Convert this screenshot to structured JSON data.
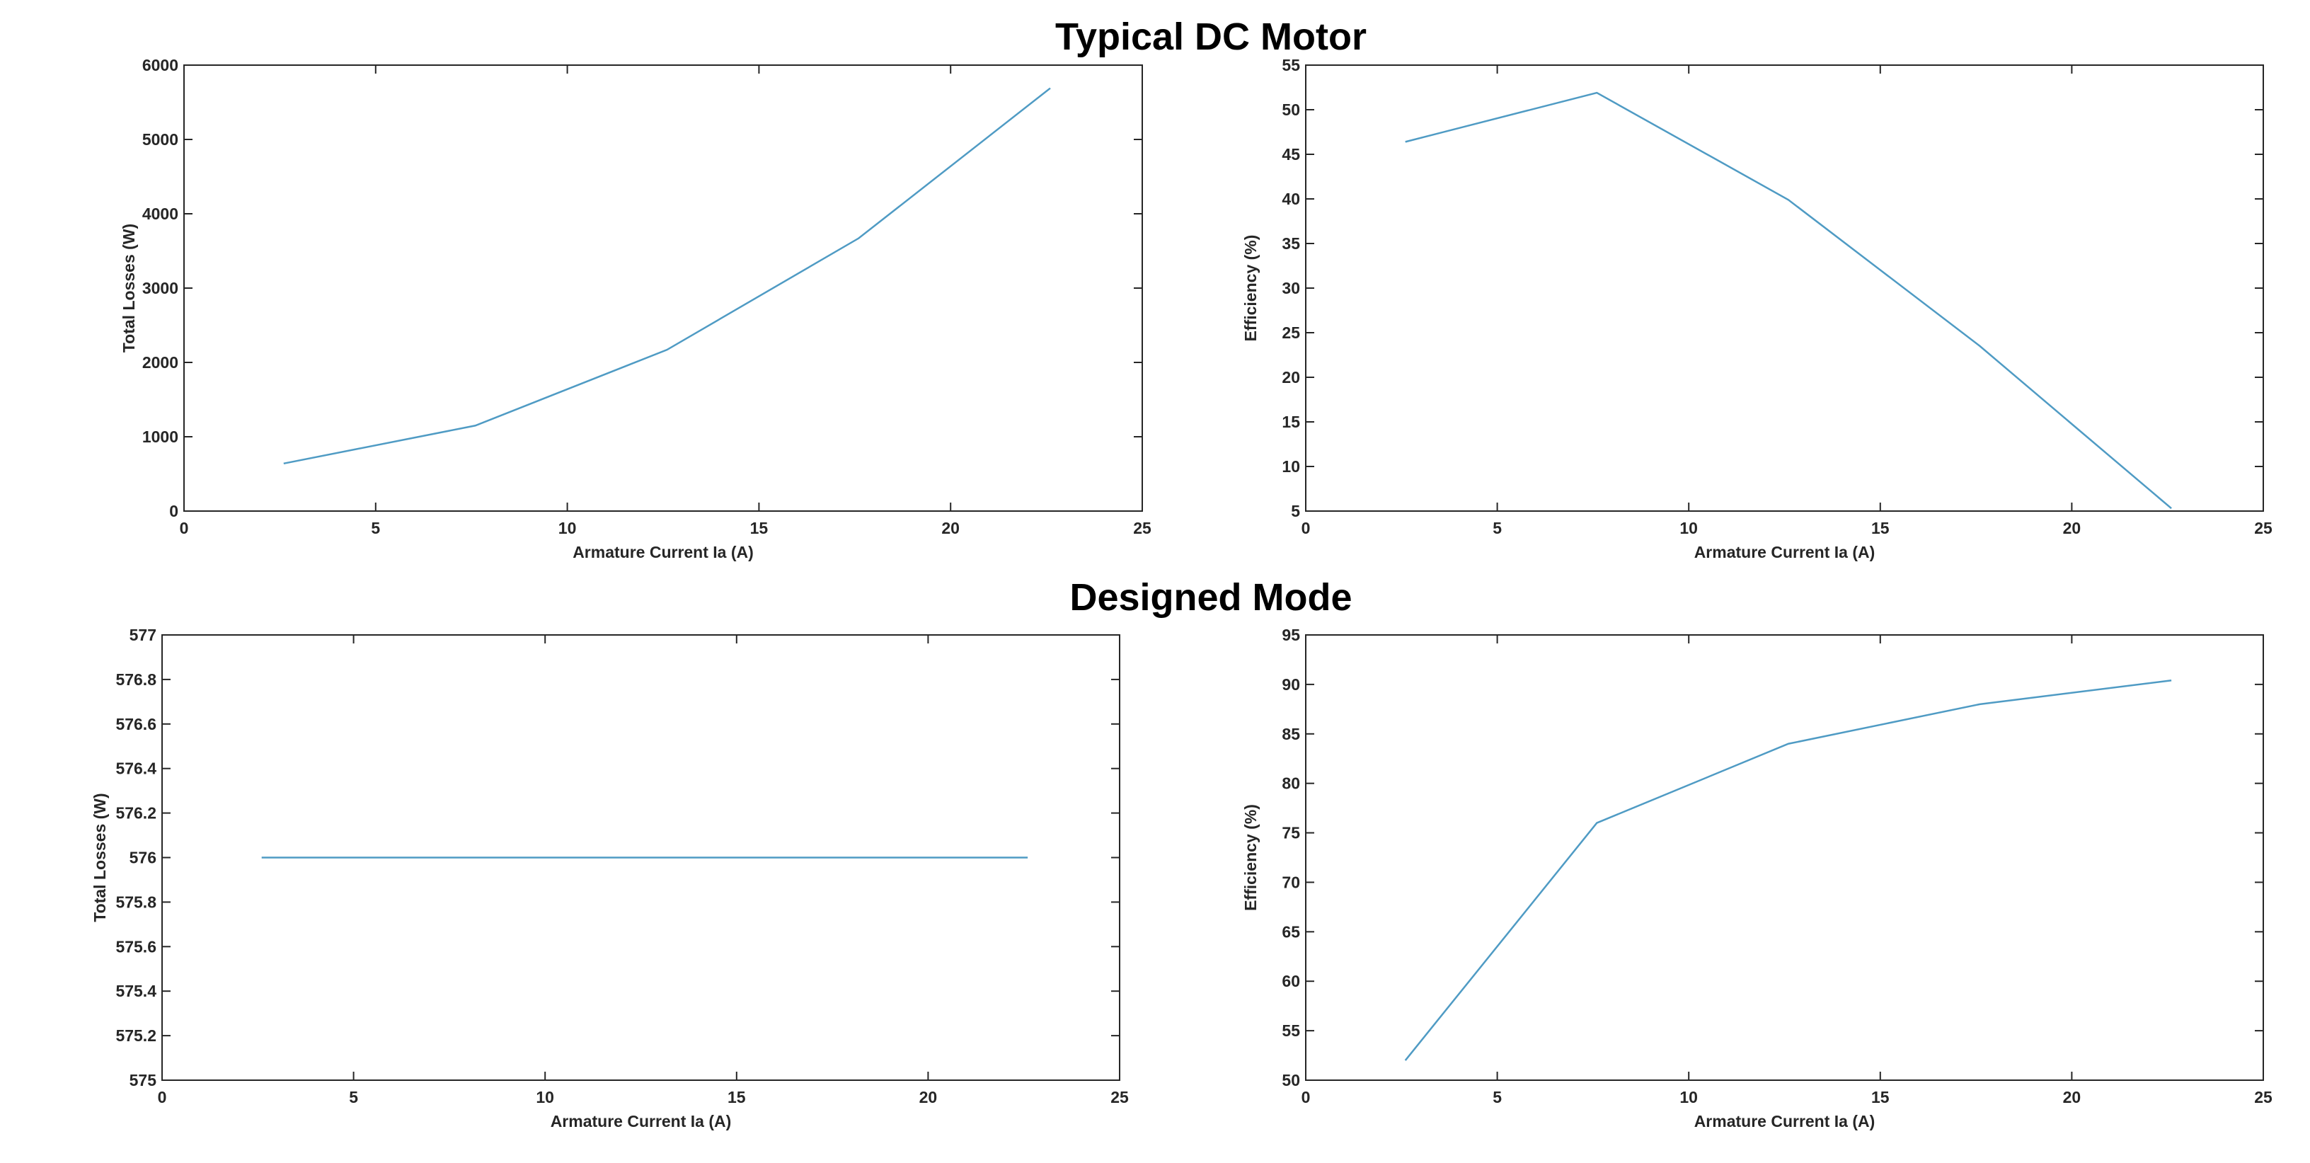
{
  "section_titles": [
    "Typical DC Motor",
    "Designed Mode"
  ],
  "colors": {
    "line": "#4f9bc4",
    "axis": "#262626"
  },
  "chart_data": [
    {
      "type": "line",
      "section": 0,
      "xlabel": "Armature Current Ia (A)",
      "ylabel": "Total Losses (W)",
      "xlim": [
        0,
        25
      ],
      "ylim": [
        0,
        6000
      ],
      "xticks": [
        0,
        5,
        10,
        15,
        20,
        25
      ],
      "yticks": [
        0,
        1000,
        2000,
        3000,
        4000,
        5000,
        6000
      ],
      "ytick_labels": [
        "0",
        "1000",
        "2000",
        "3000",
        "4000",
        "5000",
        "6000"
      ],
      "x": [
        2.6,
        7.6,
        12.6,
        17.6,
        22.6
      ],
      "y": [
        640,
        1150,
        2170,
        3670,
        5690
      ],
      "grid": false
    },
    {
      "type": "line",
      "section": 0,
      "xlabel": "Armature Current Ia (A)",
      "ylabel": "Efficiency (%)",
      "xlim": [
        0,
        25
      ],
      "ylim": [
        5,
        55
      ],
      "xticks": [
        0,
        5,
        10,
        15,
        20,
        25
      ],
      "yticks": [
        5,
        10,
        15,
        20,
        25,
        30,
        35,
        40,
        45,
        50,
        55
      ],
      "ytick_labels": [
        "5",
        "10",
        "15",
        "20",
        "25",
        "30",
        "35",
        "40",
        "45",
        "50",
        "55"
      ],
      "x": [
        2.6,
        7.6,
        12.6,
        17.6,
        22.6
      ],
      "y": [
        46.4,
        51.9,
        39.9,
        23.5,
        5.3
      ],
      "grid": false
    },
    {
      "type": "line",
      "section": 1,
      "xlabel": "Armature Current Ia (A)",
      "ylabel": "Total Losses (W)",
      "xlim": [
        0,
        25
      ],
      "ylim": [
        575,
        577
      ],
      "xticks": [
        0,
        5,
        10,
        15,
        20,
        25
      ],
      "yticks": [
        575,
        575.2,
        575.4,
        575.6,
        575.8,
        576,
        576.2,
        576.4,
        576.6,
        576.8,
        577
      ],
      "ytick_labels": [
        "575",
        "575.2",
        "575.4",
        "575.6",
        "575.8",
        "576",
        "576.2",
        "576.4",
        "576.6",
        "576.8",
        "577"
      ],
      "x": [
        2.6,
        7.6,
        12.6,
        17.6,
        22.6
      ],
      "y": [
        576,
        576,
        576,
        576,
        576
      ],
      "grid": false
    },
    {
      "type": "line",
      "section": 1,
      "xlabel": "Armature Current Ia (A)",
      "ylabel": "Efficiency (%)",
      "xlim": [
        0,
        25
      ],
      "ylim": [
        50,
        95
      ],
      "xticks": [
        0,
        5,
        10,
        15,
        20,
        25
      ],
      "yticks": [
        50,
        55,
        60,
        65,
        70,
        75,
        80,
        85,
        90,
        95
      ],
      "ytick_labels": [
        "50",
        "55",
        "60",
        "65",
        "70",
        "75",
        "80",
        "85",
        "90",
        "95"
      ],
      "x": [
        2.6,
        7.6,
        12.6,
        17.6,
        22.6
      ],
      "y": [
        52,
        76,
        84,
        88,
        90.4
      ],
      "grid": false
    }
  ]
}
